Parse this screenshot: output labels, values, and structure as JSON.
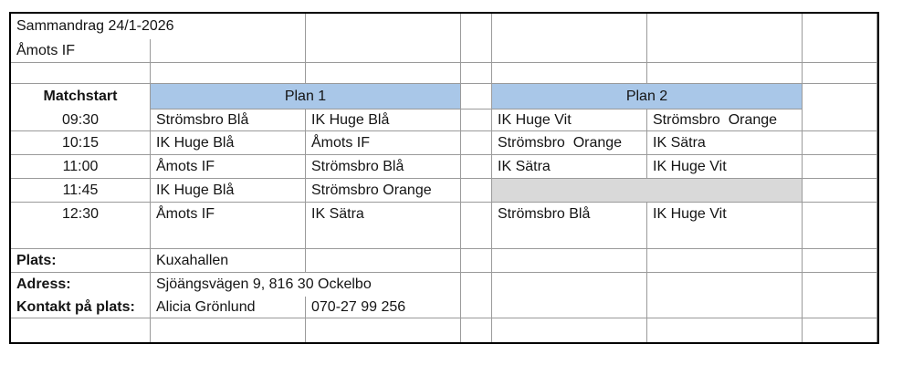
{
  "colors": {
    "header_fill": "#A9C7E8",
    "shaded_fill": "#D9D9D9",
    "grid_line": "#9A9A9A",
    "outer_border": "#000000"
  },
  "header": {
    "title": "Sammandrag 24/1-2026",
    "club": "Åmots IF"
  },
  "schedule": {
    "time_header": "Matchstart",
    "plan1_header": "Plan 1",
    "plan2_header": "Plan 2",
    "rows": [
      {
        "time": "09:30",
        "plan1_home": "Strömsbro Blå",
        "plan1_away": "IK Huge Blå",
        "plan2_home": "IK Huge Vit",
        "plan2_away": "Strömsbro  Orange"
      },
      {
        "time": "10:15",
        "plan1_home": "IK Huge Blå",
        "plan1_away": "Åmots IF",
        "plan2_home": "Strömsbro  Orange",
        "plan2_away": "IK Sätra"
      },
      {
        "time": "11:00",
        "plan1_home": "Åmots IF",
        "plan1_away": "Strömsbro Blå",
        "plan2_home": "IK Sätra",
        "plan2_away": "IK Huge Vit"
      },
      {
        "time": "11:45",
        "plan1_home": "IK Huge Blå",
        "plan1_away": "Strömsbro Orange",
        "plan2_home": "",
        "plan2_away": "",
        "plan2_shaded": true
      },
      {
        "time": "12:30",
        "plan1_home": "Åmots IF",
        "plan1_away": "IK Sätra",
        "plan2_home": "Strömsbro Blå",
        "plan2_away": "IK Huge Vit"
      }
    ]
  },
  "info": {
    "plats_label": "Plats:",
    "plats_value": "Kuxahallen",
    "adress_label": "Adress:",
    "adress_value": "Sjöängsvägen 9, 816 30 Ockelbo",
    "kontakt_label": "Kontakt på plats:",
    "kontakt_name": "Alicia Grönlund",
    "kontakt_phone": "070-27 99 256"
  }
}
